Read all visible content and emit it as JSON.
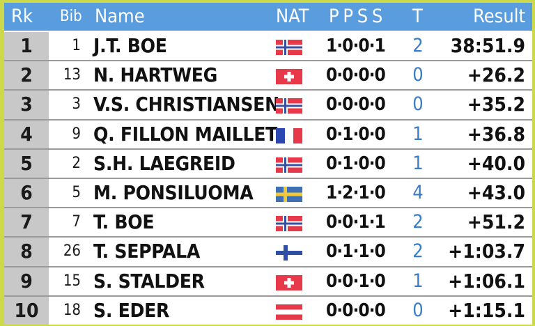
{
  "header": {
    "rank": "Rk",
    "bib": "Bib",
    "name": "Name",
    "nat": "NAT",
    "shooting": "P P S S",
    "total": "T",
    "result": "Result"
  },
  "colors": {
    "header_bg": "#5a9ddf",
    "rank_col_bg": "#c8c8c8",
    "border": "#ccd94a",
    "misses_text": "#3a7cc6"
  },
  "rows": [
    {
      "rank": "1",
      "bib": "1",
      "name": "J.T. BOE",
      "nat": "NOR",
      "shooting": "1·0·0·1",
      "total": "2",
      "result": "38:51.9"
    },
    {
      "rank": "2",
      "bib": "13",
      "name": "N. HARTWEG",
      "nat": "SUI",
      "shooting": "0·0·0·0",
      "total": "0",
      "result": "+26.2"
    },
    {
      "rank": "3",
      "bib": "3",
      "name": "V.S. CHRISTIANSEN",
      "nat": "NOR",
      "shooting": "0·0·0·0",
      "total": "0",
      "result": "+35.2"
    },
    {
      "rank": "4",
      "bib": "9",
      "name": "Q. FILLON MAILLET",
      "nat": "FRA",
      "shooting": "0·1·0·0",
      "total": "1",
      "result": "+36.8"
    },
    {
      "rank": "5",
      "bib": "2",
      "name": "S.H. LAEGREID",
      "nat": "NOR",
      "shooting": "0·1·0·0",
      "total": "1",
      "result": "+40.0"
    },
    {
      "rank": "6",
      "bib": "5",
      "name": "M. PONSILUOMA",
      "nat": "SWE",
      "shooting": "1·2·1·0",
      "total": "4",
      "result": "+43.0"
    },
    {
      "rank": "7",
      "bib": "7",
      "name": "T. BOE",
      "nat": "NOR",
      "shooting": "0·0·1·1",
      "total": "2",
      "result": "+51.2"
    },
    {
      "rank": "8",
      "bib": "26",
      "name": "T. SEPPALA",
      "nat": "FIN",
      "shooting": "0·1·1·0",
      "total": "2",
      "result": "+1:03.7"
    },
    {
      "rank": "9",
      "bib": "15",
      "name": "S. STALDER",
      "nat": "SUI",
      "shooting": "0·0·1·0",
      "total": "1",
      "result": "+1:06.1"
    },
    {
      "rank": "10",
      "bib": "18",
      "name": "S. EDER",
      "nat": "AUT",
      "shooting": "0·0·0·0",
      "total": "0",
      "result": "+1:15.1"
    }
  ]
}
